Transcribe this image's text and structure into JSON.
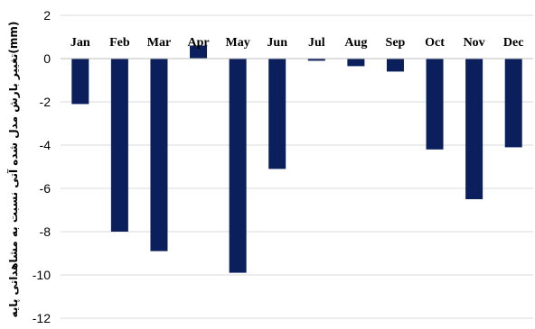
{
  "chart_data": {
    "type": "bar",
    "title": "",
    "xlabel": "",
    "ylabel": "تغییر بارش مدل شده آتی نسبت به مشاهداتی پایه(mm)",
    "ylim": [
      -12,
      2
    ],
    "yticks": [
      2,
      0,
      -2,
      -4,
      -6,
      -8,
      -10,
      -12
    ],
    "grid": true,
    "bar_color": "#0a1f5c",
    "categories": [
      "Jan",
      "Feb",
      "Mar",
      "Apr",
      "May",
      "Jun",
      "Jul",
      "Aug",
      "Sep",
      "Oct",
      "Nov",
      "Dec"
    ],
    "values": [
      -2.1,
      -8.0,
      -8.9,
      0.6,
      -9.9,
      -5.1,
      -0.1,
      -0.35,
      -0.6,
      -4.2,
      -6.5,
      -4.1
    ]
  }
}
